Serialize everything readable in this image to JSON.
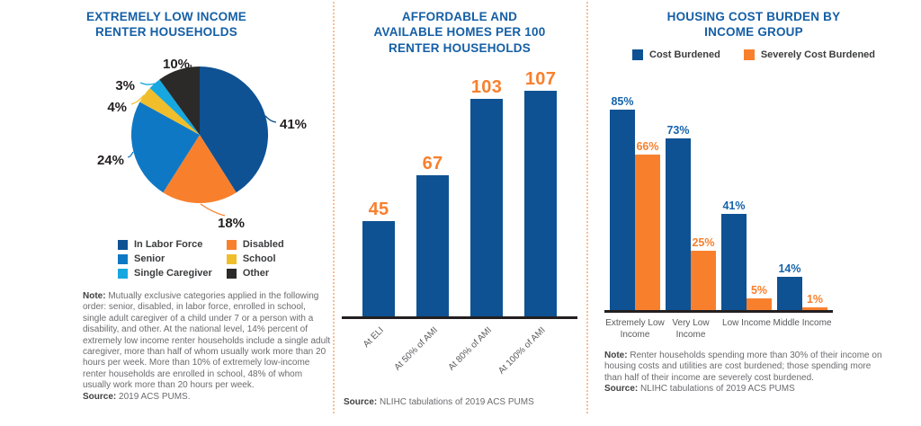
{
  "colors": {
    "title_blue": "#155FA6",
    "dark_blue": "#0E5293",
    "mid_blue": "#0F78C4",
    "light_blue": "#16A7E0",
    "orange": "#F8802D",
    "yellow": "#F0BE2A",
    "black": "#2B2A29",
    "axis": "#231F20",
    "divider_dotted_orange": "#F9BE92",
    "note_gray": "#6A6B6E"
  },
  "chart_data": [
    {
      "type": "pie",
      "title_lines": [
        "EXTREMELY LOW INCOME",
        "RENTER HOUSEHOLDS"
      ],
      "value_suffix": "%",
      "slices": [
        {
          "label": "In Labor Force",
          "value": 41,
          "color": "#0E5293"
        },
        {
          "label": "Disabled",
          "value": 18,
          "color": "#F8802D"
        },
        {
          "label": "Senior",
          "value": 24,
          "color": "#0F78C4"
        },
        {
          "label": "School",
          "value": 4,
          "color": "#F0BE2A"
        },
        {
          "label": "Single Caregiver",
          "value": 3,
          "color": "#16A7E0"
        },
        {
          "label": "Other",
          "value": 10,
          "color": "#2B2A29"
        }
      ],
      "legend_columns": [
        [
          "In Labor Force",
          "Senior",
          "Single Caregiver"
        ],
        [
          "Disabled",
          "School",
          "Other"
        ]
      ],
      "note_label": "Note:",
      "note_text": "Mutually exclusive categories applied in the following order: senior, disabled, in labor force, enrolled in school, single adult caregiver of a child under 7 or a person with a disability, and other. At the national level, 14% percent of extremely low income renter households include a single adult caregiver, more than half of whom usually work more than 20 hours per week. More than 10% of extremely low-income renter households are enrolled in school, 48% of whom usually work more than 20 hours per week.",
      "source_label": "Source:",
      "source_text": "2019 ACS PUMS."
    },
    {
      "type": "bar",
      "title_lines": [
        "AFFORDABLE AND",
        "AVAILABLE HOMES PER 100",
        "RENTER HOUSEHOLDS"
      ],
      "value_suffix": "",
      "categories": [
        "At ELI",
        "At 50% of AMI",
        "At 80% of AMI",
        "At 100% of AMI"
      ],
      "values": [
        45,
        67,
        103,
        107
      ],
      "bar_color": "#0E5293",
      "value_label_color": "#F8802D",
      "source_label": "Source:",
      "source_text": "NLIHC tabulations of 2019 ACS PUMS"
    },
    {
      "type": "grouped_bar",
      "title_lines": [
        "HOUSING COST BURDEN BY",
        "INCOME GROUP"
      ],
      "value_suffix": "%",
      "categories": [
        "Extremely Low Income",
        "Very Low Income",
        "Low Income",
        "Middle Income"
      ],
      "series": [
        {
          "name": "Cost Burdened",
          "color": "#0E5293",
          "label_color": "#1563AC",
          "values": [
            85,
            73,
            41,
            14
          ]
        },
        {
          "name": "Severely Cost Burdened",
          "color": "#F8802D",
          "label_color": "#F8802D",
          "values": [
            66,
            25,
            5,
            1
          ]
        }
      ],
      "note_label": "Note:",
      "note_text": "Renter households spending more than 30% of their income on housing costs and utilities are cost burdened; those spending more than half of their income are severely cost burdened.",
      "source_label": "Source:",
      "source_text": "NLIHC tabulations of 2019 ACS PUMS"
    }
  ]
}
